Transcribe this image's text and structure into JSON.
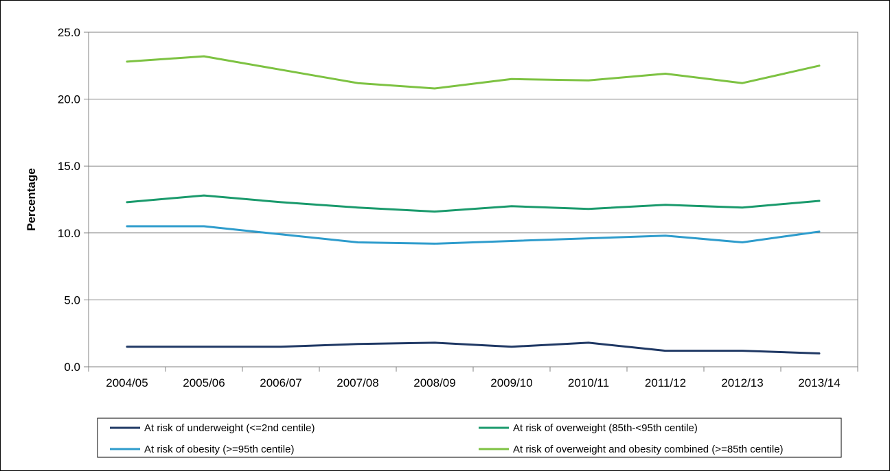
{
  "chart_data": {
    "type": "line",
    "title": "",
    "xlabel": "",
    "ylabel": "Percentage",
    "ylim": [
      0,
      25
    ],
    "yticks": [
      "0.0",
      "5.0",
      "10.0",
      "15.0",
      "20.0",
      "25.0"
    ],
    "grid": true,
    "legend_position": "bottom",
    "categories": [
      "2004/05",
      "2005/06",
      "2006/07",
      "2007/08",
      "2008/09",
      "2009/10",
      "2010/11",
      "2011/12",
      "2012/13",
      "2013/14"
    ],
    "series": [
      {
        "name": "At risk of underweight (<=2nd centile)",
        "color": "#1f3864",
        "values": [
          1.5,
          1.5,
          1.5,
          1.7,
          1.8,
          1.5,
          1.8,
          1.2,
          1.2,
          1.0
        ]
      },
      {
        "name": "At risk of overweight (85th-<95th centile)",
        "color": "#1a9a6c",
        "values": [
          12.3,
          12.8,
          12.3,
          11.9,
          11.6,
          12.0,
          11.8,
          12.1,
          11.9,
          12.4
        ]
      },
      {
        "name": "At risk of obesity (>=95th centile)",
        "color": "#2e9ccc",
        "values": [
          10.5,
          10.5,
          9.9,
          9.3,
          9.2,
          9.4,
          9.6,
          9.8,
          9.3,
          10.1
        ]
      },
      {
        "name": "At risk of overweight and obesity combined (>=85th centile)",
        "color": "#7dc242",
        "values": [
          22.8,
          23.2,
          22.2,
          21.2,
          20.8,
          21.5,
          21.4,
          21.9,
          21.2,
          22.5
        ]
      }
    ]
  }
}
